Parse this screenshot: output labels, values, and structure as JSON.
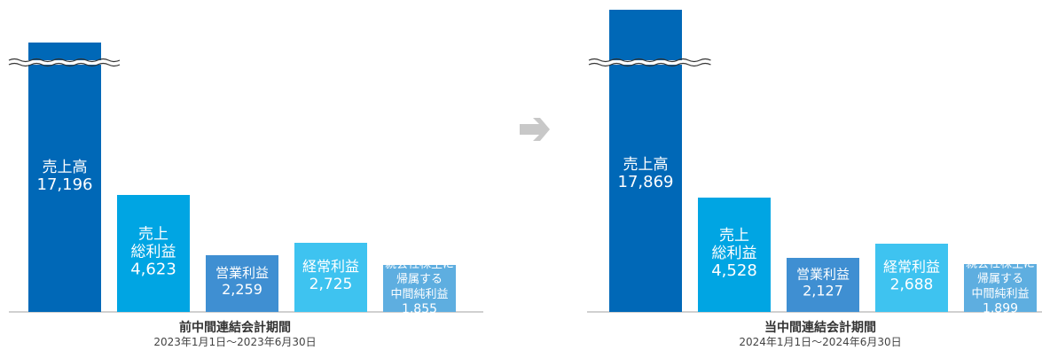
{
  "chart_data": [
    {
      "type": "bar",
      "title": "前中間連結会計期間",
      "subtitle": "2023年1月1日～2023年6月30日",
      "axis_break_on_first_bar": true,
      "bars": [
        {
          "label_lines": [
            "売上高"
          ],
          "value": 17196,
          "value_text": "17,196",
          "color": "#0068b7"
        },
        {
          "label_lines": [
            "売上",
            "総利益"
          ],
          "value": 4623,
          "value_text": "4,623",
          "color": "#00a5e3"
        },
        {
          "label_lines": [
            "営業利益"
          ],
          "value": 2259,
          "value_text": "2,259",
          "color": "#3f8fd2"
        },
        {
          "label_lines": [
            "経常利益"
          ],
          "value": 2725,
          "value_text": "2,725",
          "color": "#3ec3f0"
        },
        {
          "label_lines": [
            "親会社株主に",
            "帰属する",
            "中間純利益"
          ],
          "value": 1855,
          "value_text": "1,855",
          "color": "#5eaee0"
        }
      ]
    },
    {
      "type": "bar",
      "title": "当中間連結会計期間",
      "subtitle": "2024年1月1日～2024年6月30日",
      "axis_break_on_first_bar": true,
      "bars": [
        {
          "label_lines": [
            "売上高"
          ],
          "value": 17869,
          "value_text": "17,869",
          "color": "#0068b7"
        },
        {
          "label_lines": [
            "売上",
            "総利益"
          ],
          "value": 4528,
          "value_text": "4,528",
          "color": "#00a5e3"
        },
        {
          "label_lines": [
            "営業利益"
          ],
          "value": 2127,
          "value_text": "2,127",
          "color": "#3f8fd2"
        },
        {
          "label_lines": [
            "経常利益"
          ],
          "value": 2688,
          "value_text": "2,688",
          "color": "#3ec3f0"
        },
        {
          "label_lines": [
            "親会社株主に",
            "帰属する",
            "中間純利益"
          ],
          "value": 1899,
          "value_text": "1,899",
          "color": "#5eaee0"
        }
      ]
    }
  ],
  "colors": {
    "arrow": "#c8c8c8",
    "baseline": "#a0a0a0",
    "label_text": "#ffffff"
  }
}
